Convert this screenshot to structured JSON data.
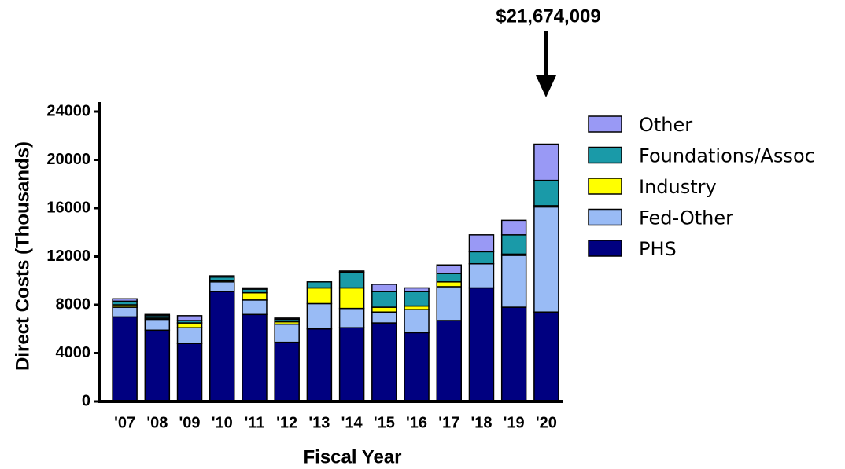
{
  "chart_data": {
    "type": "stacked_bar",
    "annotation": "$21,674,009",
    "xlabel": "Fiscal Year",
    "ylabel": "Direct Costs (Thousands)",
    "categories": [
      "'07",
      "'08",
      "'09",
      "'10",
      "'11",
      "'12",
      "'13",
      "'14",
      "'15",
      "'16",
      "'17",
      "'18",
      "'19",
      "'20"
    ],
    "series": [
      {
        "name": "PHS",
        "color": "#000080",
        "values": [
          7000,
          5900,
          4800,
          9100,
          7200,
          4900,
          6000,
          6100,
          6500,
          5700,
          6700,
          9400,
          7800,
          7400
        ]
      },
      {
        "name": "Fed-Other",
        "color": "#99bbf5",
        "values": [
          800,
          900,
          1300,
          800,
          1200,
          1500,
          2100,
          1600,
          900,
          1900,
          2800,
          2000,
          4300,
          8700
        ]
      },
      {
        "name": "Industry",
        "color": "#ffff00",
        "values": [
          200,
          100,
          400,
          100,
          600,
          200,
          1300,
          1700,
          400,
          300,
          400,
          0,
          100,
          100
        ]
      },
      {
        "name": "Foundations/Assoc",
        "color": "#1a9aa8",
        "values": [
          300,
          200,
          200,
          300,
          300,
          200,
          500,
          1300,
          1300,
          1200,
          700,
          1000,
          1600,
          2100
        ]
      },
      {
        "name": "Other",
        "color": "#9999f5",
        "values": [
          200,
          100,
          400,
          100,
          100,
          100,
          0,
          100,
          600,
          300,
          700,
          1400,
          1200,
          3000
        ]
      }
    ],
    "ylim": [
      0,
      24000
    ],
    "yticks": [
      0,
      4000,
      8000,
      12000,
      16000,
      20000,
      24000
    ]
  }
}
